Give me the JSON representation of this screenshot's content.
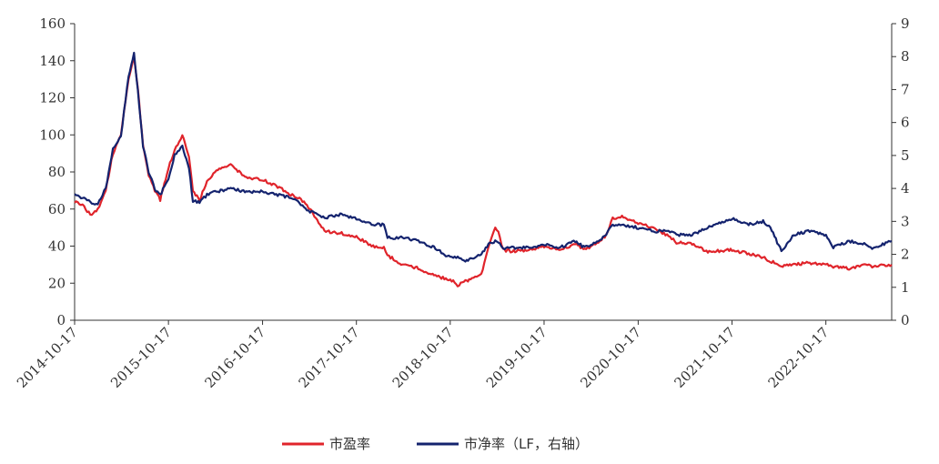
{
  "chart_data": {
    "type": "line",
    "title": "",
    "xlabel": "",
    "ylabel": "",
    "x_ticks": [
      "2014-10-17",
      "2015-10-17",
      "2016-10-17",
      "2017-10-17",
      "2018-10-17",
      "2019-10-17",
      "2020-10-17",
      "2021-10-17",
      "2022-10-17"
    ],
    "xlim": [
      "2014-10-17",
      "2023-06-30"
    ],
    "y_left": {
      "ylim": [
        0,
        160
      ],
      "ticks": [
        "0",
        "20",
        "40",
        "60",
        "80",
        "100",
        "120",
        "140",
        "160"
      ]
    },
    "y_right": {
      "ylim": [
        0,
        9
      ],
      "ticks": [
        "0",
        "1",
        "2",
        "3",
        "4",
        "5",
        "6",
        "7",
        "8",
        "9"
      ]
    },
    "grid": false,
    "legend_position": "bottom-center",
    "series": [
      {
        "name": "市盈率",
        "axis": "left",
        "color": "#e0242b",
        "x": [
          "2014-10-17",
          "2014-11-17",
          "2014-12-17",
          "2015-01-15",
          "2015-02-15",
          "2015-03-15",
          "2015-04-15",
          "2015-05-15",
          "2015-06-05",
          "2015-06-20",
          "2015-07-10",
          "2015-08-01",
          "2015-08-25",
          "2015-09-15",
          "2015-10-17",
          "2015-11-10",
          "2015-12-10",
          "2016-01-05",
          "2016-01-20",
          "2016-02-15",
          "2016-03-15",
          "2016-04-15",
          "2016-06-15",
          "2016-08-15",
          "2016-10-17",
          "2016-12-15",
          "2017-02-15",
          "2017-03-15",
          "2017-04-20",
          "2017-06-15",
          "2017-08-15",
          "2017-10-17",
          "2017-12-15",
          "2018-02-01",
          "2018-02-15",
          "2018-04-15",
          "2018-06-15",
          "2018-08-15",
          "2018-10-17",
          "2018-11-15",
          "2018-12-15",
          "2019-01-04",
          "2019-02-15",
          "2019-03-15",
          "2019-04-10",
          "2019-04-22",
          "2019-05-10",
          "2019-06-15",
          "2019-08-15",
          "2019-10-17",
          "2019-12-15",
          "2020-02-15",
          "2020-03-23",
          "2020-05-15",
          "2020-06-15",
          "2020-07-10",
          "2020-08-15",
          "2020-10-17",
          "2020-12-15",
          "2021-02-18",
          "2021-03-15",
          "2021-05-15",
          "2021-07-15",
          "2021-10-17",
          "2021-12-15",
          "2022-02-15",
          "2022-03-15",
          "2022-04-27",
          "2022-06-15",
          "2022-08-15",
          "2022-10-17",
          "2022-11-15",
          "2023-01-15",
          "2023-03-15",
          "2023-04-15",
          "2023-06-30"
        ],
        "values": [
          64,
          62,
          57,
          60,
          70,
          90,
          100,
          130,
          142,
          125,
          95,
          78,
          70,
          65,
          82,
          92,
          100,
          88,
          70,
          65,
          75,
          80,
          84,
          77,
          76,
          72,
          67,
          65,
          60,
          48,
          47,
          45,
          40,
          39,
          35,
          30,
          28,
          24,
          22,
          19,
          21,
          22,
          25,
          40,
          50,
          48,
          38,
          37,
          38,
          40,
          38,
          41,
          38,
          42,
          46,
          55,
          56,
          52,
          50,
          45,
          42,
          41,
          37,
          38,
          36,
          34,
          32,
          29,
          30,
          31,
          30,
          29,
          28,
          30,
          29,
          30
        ]
      },
      {
        "name": "市净率（LF，右轴）",
        "axis": "right",
        "color": "#14236e",
        "x": [
          "2014-10-17",
          "2014-11-17",
          "2014-12-17",
          "2015-01-15",
          "2015-02-15",
          "2015-03-15",
          "2015-04-15",
          "2015-05-15",
          "2015-06-05",
          "2015-06-20",
          "2015-07-10",
          "2015-08-01",
          "2015-08-25",
          "2015-09-15",
          "2015-10-17",
          "2015-11-10",
          "2015-12-10",
          "2016-01-05",
          "2016-01-20",
          "2016-02-15",
          "2016-03-15",
          "2016-04-15",
          "2016-06-15",
          "2016-08-15",
          "2016-10-17",
          "2016-12-15",
          "2017-02-15",
          "2017-03-15",
          "2017-04-20",
          "2017-06-15",
          "2017-08-15",
          "2017-10-17",
          "2017-12-15",
          "2018-02-01",
          "2018-02-15",
          "2018-04-15",
          "2018-06-15",
          "2018-08-15",
          "2018-10-17",
          "2018-11-15",
          "2018-12-15",
          "2019-01-04",
          "2019-02-15",
          "2019-03-15",
          "2019-04-10",
          "2019-04-22",
          "2019-05-10",
          "2019-06-15",
          "2019-08-15",
          "2019-10-17",
          "2019-12-15",
          "2020-02-15",
          "2020-03-23",
          "2020-05-15",
          "2020-06-15",
          "2020-07-10",
          "2020-08-15",
          "2020-10-17",
          "2020-12-15",
          "2021-02-18",
          "2021-03-15",
          "2021-05-15",
          "2021-07-15",
          "2021-10-17",
          "2021-12-15",
          "2022-02-15",
          "2022-03-15",
          "2022-04-27",
          "2022-06-15",
          "2022-08-15",
          "2022-10-17",
          "2022-11-15",
          "2023-01-15",
          "2023-03-15",
          "2023-04-15",
          "2023-06-30"
        ],
        "values": [
          3.8,
          3.7,
          3.6,
          3.5,
          4.0,
          5.2,
          5.6,
          7.4,
          8.1,
          7.0,
          5.3,
          4.5,
          4.0,
          3.8,
          4.3,
          5.0,
          5.3,
          4.6,
          3.6,
          3.6,
          3.8,
          3.9,
          4.0,
          3.9,
          3.9,
          3.8,
          3.7,
          3.5,
          3.3,
          3.1,
          3.2,
          3.1,
          2.9,
          2.9,
          2.5,
          2.5,
          2.4,
          2.2,
          1.9,
          1.9,
          1.8,
          1.85,
          2.0,
          2.3,
          2.4,
          2.4,
          2.2,
          2.2,
          2.2,
          2.3,
          2.2,
          2.4,
          2.2,
          2.4,
          2.6,
          2.9,
          2.9,
          2.8,
          2.7,
          2.7,
          2.6,
          2.6,
          2.8,
          3.1,
          2.9,
          3.0,
          2.8,
          2.1,
          2.6,
          2.7,
          2.6,
          2.2,
          2.4,
          2.3,
          2.2,
          2.4
        ]
      }
    ]
  }
}
